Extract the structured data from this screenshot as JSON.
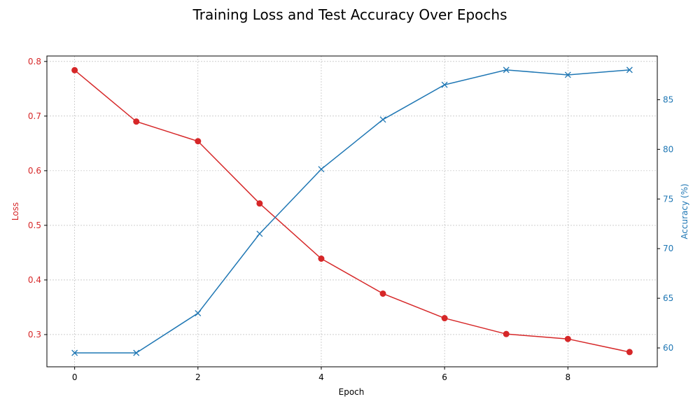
{
  "chart_data": {
    "type": "line",
    "title": "Training Loss and Test Accuracy Over Epochs",
    "xlabel": "Epoch",
    "x": [
      0,
      1,
      2,
      3,
      4,
      5,
      6,
      7,
      8,
      9
    ],
    "xlim": [
      -0.45,
      9.45
    ],
    "xticks": [
      0,
      2,
      4,
      6,
      8
    ],
    "grid": true,
    "left_axis": {
      "label": "Loss",
      "color": "#d62728",
      "ylim": [
        0.241,
        0.81
      ],
      "ticks": [
        0.3,
        0.4,
        0.5,
        0.6,
        0.7,
        0.8
      ],
      "tick_labels": [
        "0.3",
        "0.4",
        "0.5",
        "0.6",
        "0.7",
        "0.8"
      ]
    },
    "right_axis": {
      "label": "Accuracy (%)",
      "color": "#1f77b4",
      "ylim": [
        58.1,
        89.4
      ],
      "ticks": [
        60,
        65,
        70,
        75,
        80,
        85
      ],
      "tick_labels": [
        "60",
        "65",
        "70",
        "75",
        "80",
        "85"
      ]
    },
    "series": [
      {
        "axis": "left",
        "color": "#d62728",
        "marker": "circle",
        "values": [
          0.784,
          0.69,
          0.654,
          0.54,
          0.439,
          0.375,
          0.33,
          0.301,
          0.292,
          0.268
        ]
      },
      {
        "axis": "right",
        "color": "#1f77b4",
        "marker": "x",
        "values": [
          59.5,
          59.5,
          63.5,
          71.5,
          78.0,
          83.0,
          86.5,
          88.0,
          87.5,
          88.0
        ]
      }
    ]
  }
}
